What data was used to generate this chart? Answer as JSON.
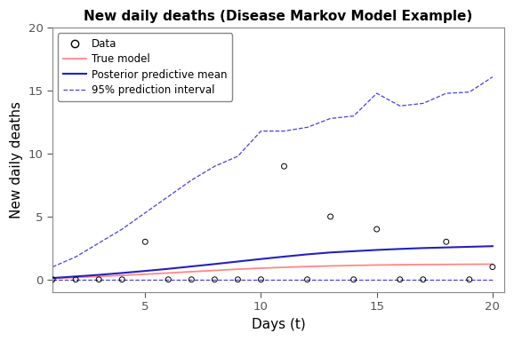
{
  "title": "New daily deaths (Disease Markov Model Example)",
  "xlabel": "Days (t)",
  "ylabel": "New daily deaths",
  "xlim": [
    1,
    20.5
  ],
  "ylim": [
    -1,
    20
  ],
  "yticks": [
    0,
    5,
    10,
    15,
    20
  ],
  "xticks": [
    5,
    10,
    15,
    20
  ],
  "data_x": [
    1,
    2,
    3,
    4,
    5,
    6,
    7,
    8,
    9,
    10,
    11,
    12,
    13,
    14,
    15,
    16,
    17,
    18,
    19,
    20
  ],
  "data_y": [
    0,
    0,
    0,
    0,
    3,
    0,
    0,
    0,
    0,
    0,
    9,
    0,
    5,
    0,
    4,
    0,
    0,
    3,
    0,
    1
  ],
  "true_model_x": [
    1,
    2,
    3,
    4,
    5,
    6,
    7,
    8,
    9,
    10,
    11,
    12,
    13,
    14,
    15,
    16,
    17,
    18,
    19,
    20
  ],
  "true_model_y": [
    0.08,
    0.16,
    0.24,
    0.33,
    0.42,
    0.52,
    0.62,
    0.72,
    0.82,
    0.9,
    0.97,
    1.03,
    1.08,
    1.12,
    1.15,
    1.17,
    1.19,
    1.2,
    1.21,
    1.22
  ],
  "post_mean_x": [
    1,
    2,
    3,
    4,
    5,
    6,
    7,
    8,
    9,
    10,
    11,
    12,
    13,
    14,
    15,
    16,
    17,
    18,
    19,
    20
  ],
  "post_mean_y": [
    0.12,
    0.24,
    0.37,
    0.52,
    0.68,
    0.85,
    1.04,
    1.23,
    1.43,
    1.63,
    1.82,
    2.0,
    2.15,
    2.25,
    2.35,
    2.43,
    2.5,
    2.55,
    2.6,
    2.65
  ],
  "upper_ci_x": [
    1,
    2,
    3,
    4,
    5,
    6,
    7,
    8,
    9,
    10,
    11,
    12,
    13,
    14,
    15,
    16,
    17,
    18,
    19,
    20
  ],
  "upper_ci_y": [
    1.0,
    1.8,
    2.9,
    4.0,
    5.3,
    6.6,
    7.9,
    9.0,
    9.8,
    11.8,
    11.8,
    12.1,
    12.8,
    13.0,
    14.8,
    13.8,
    14.0,
    14.8,
    14.9,
    16.1
  ],
  "lower_ci_x": [
    1,
    2,
    3,
    4,
    5,
    6,
    7,
    8,
    9,
    10,
    11,
    12,
    13,
    14,
    15,
    16,
    17,
    18,
    19,
    20
  ],
  "lower_ci_y": [
    0.0,
    0.0,
    0.0,
    0.0,
    0.0,
    0.0,
    0.0,
    0.0,
    0.0,
    0.0,
    0.0,
    0.0,
    0.0,
    0.0,
    0.0,
    0.0,
    0.0,
    0.0,
    0.0,
    0.0
  ],
  "true_model_color": "#FF8888",
  "post_mean_color": "#2222BB",
  "ci_color": "#4444CC",
  "data_color": "#000000",
  "background_color": "#FFFFFF",
  "title_fontsize": 11,
  "axis_label_fontsize": 11,
  "tick_label_color": "#555555"
}
